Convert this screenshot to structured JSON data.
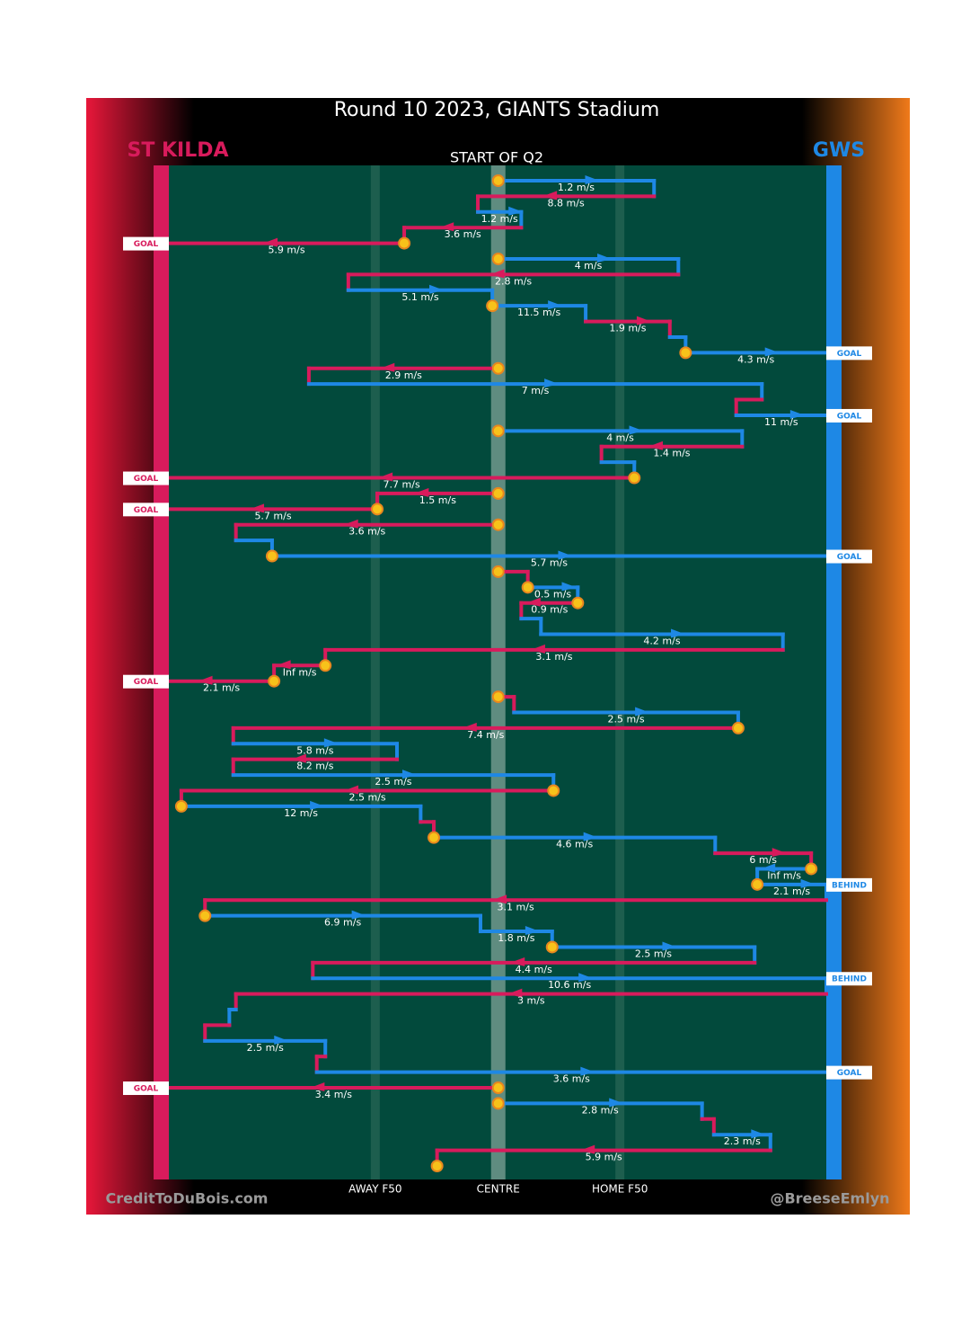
{
  "chart_data": {
    "type": "chain",
    "title": "Round 10 2023, GIANTS Stadium",
    "subtitle": "START OF Q2",
    "credit_left": "CreditToDuBois.com",
    "credit_right": "@BreeseEmlyn",
    "teams": [
      {
        "name": "ST KILDA",
        "color": "#d81b5c"
      },
      {
        "name": "GWS",
        "color": "#1e88e5"
      }
    ],
    "xlim": [
      0,
      100
    ],
    "xticks": [
      {
        "value": 31.4,
        "label": "AWAY F50"
      },
      {
        "value": 50.1,
        "label": "CENTRE"
      },
      {
        "value": 68.6,
        "label": "HOME F50"
      }
    ],
    "segments": [
      {
        "team": "GWS",
        "from": 50.1,
        "to": 73.8,
        "label": "1.2 m/s",
        "marker": true
      },
      {
        "team": "ST KILDA",
        "from": 73.8,
        "to": 47.0,
        "label": "8.8 m/s"
      },
      {
        "team": "GWS",
        "from": 47.0,
        "to": 53.6,
        "label": "1.2 m/s"
      },
      {
        "team": "ST KILDA",
        "from": 53.6,
        "to": 35.8,
        "label": "3.6 m/s"
      },
      {
        "team": "ST KILDA",
        "from": 35.8,
        "to": 0,
        "label": "5.9 m/s",
        "marker": true,
        "outcome": "GOAL"
      },
      {
        "team": "GWS",
        "from": 50.1,
        "to": 77.5,
        "label": "4 m/s",
        "marker": true
      },
      {
        "team": "ST KILDA",
        "from": 77.5,
        "to": 27.3,
        "label": "2.8 m/s"
      },
      {
        "team": "GWS",
        "from": 27.3,
        "to": 49.2,
        "label": "5.1 m/s"
      },
      {
        "team": "GWS",
        "from": 49.2,
        "to": 63.4,
        "label": "11.5 m/s",
        "marker": true
      },
      {
        "team": "ST KILDA",
        "from": 63.4,
        "to": 76.2,
        "label": "1.9 m/s"
      },
      {
        "team": "GWS",
        "from": 76.2,
        "to": 78.6,
        "label": null
      },
      {
        "team": "GWS",
        "from": 78.6,
        "to": 100,
        "label": "4.3 m/s",
        "marker": true,
        "outcome": "GOAL"
      },
      {
        "team": "ST KILDA",
        "from": 50.1,
        "to": 21.3,
        "label": "2.9 m/s",
        "marker": true
      },
      {
        "team": "GWS",
        "from": 21.3,
        "to": 90.2,
        "label": "7 m/s"
      },
      {
        "team": "ST KILDA",
        "from": 90.2,
        "to": 86.3,
        "label": null
      },
      {
        "team": "GWS",
        "from": 86.3,
        "to": 100,
        "label": "11 m/s",
        "outcome": "GOAL"
      },
      {
        "team": "GWS",
        "from": 50.1,
        "to": 87.2,
        "label": "4 m/s",
        "marker": true
      },
      {
        "team": "ST KILDA",
        "from": 87.2,
        "to": 65.8,
        "label": "1.4 m/s"
      },
      {
        "team": "GWS",
        "from": 65.8,
        "to": 70.8,
        "label": null
      },
      {
        "team": "ST KILDA",
        "from": 70.8,
        "to": 0,
        "label": "7.7 m/s",
        "marker": true,
        "outcome": "GOAL"
      },
      {
        "team": "ST KILDA",
        "from": 50.1,
        "to": 31.7,
        "label": "1.5 m/s",
        "marker": true
      },
      {
        "team": "ST KILDA",
        "from": 31.7,
        "to": 0,
        "label": "5.7 m/s",
        "marker": true,
        "outcome": "GOAL"
      },
      {
        "team": "ST KILDA",
        "from": 50.1,
        "to": 10.2,
        "label": "3.6 m/s",
        "marker": true
      },
      {
        "team": "GWS",
        "from": 10.2,
        "to": 15.7,
        "label": null
      },
      {
        "team": "GWS",
        "from": 15.7,
        "to": 100,
        "label": "5.7 m/s",
        "marker": true,
        "outcome": "GOAL"
      },
      {
        "team": "ST KILDA",
        "from": 50.1,
        "to": 54.6,
        "label": null,
        "marker": true
      },
      {
        "team": "GWS",
        "from": 54.6,
        "to": 62.2,
        "label": "0.5 m/s",
        "marker": true
      },
      {
        "team": "ST KILDA",
        "from": 62.2,
        "to": 53.6,
        "label": "0.9 m/s",
        "marker": true
      },
      {
        "team": "GWS",
        "from": 53.6,
        "to": 56.6,
        "label": null
      },
      {
        "team": "GWS",
        "from": 56.6,
        "to": 93.4,
        "label": "4.2 m/s"
      },
      {
        "team": "ST KILDA",
        "from": 93.4,
        "to": 23.8,
        "label": "3.1 m/s"
      },
      {
        "team": "ST KILDA",
        "from": 23.8,
        "to": 16.0,
        "label": "Inf m/s",
        "marker": true
      },
      {
        "team": "ST KILDA",
        "from": 16.0,
        "to": 0,
        "label": "2.1 m/s",
        "marker": true,
        "outcome": "GOAL"
      },
      {
        "team": "ST KILDA",
        "from": 50.1,
        "to": 52.5,
        "label": null,
        "marker": true
      },
      {
        "team": "GWS",
        "from": 52.5,
        "to": 86.6,
        "label": "2.5 m/s"
      },
      {
        "team": "ST KILDA",
        "from": 86.6,
        "to": 9.8,
        "label": "7.4 m/s",
        "marker": true
      },
      {
        "team": "GWS",
        "from": 9.8,
        "to": 34.7,
        "label": "5.8 m/s"
      },
      {
        "team": "ST KILDA",
        "from": 34.7,
        "to": 9.8,
        "label": "8.2 m/s"
      },
      {
        "team": "GWS",
        "from": 9.8,
        "to": 58.5,
        "label": "2.5 m/s"
      },
      {
        "team": "ST KILDA",
        "from": 58.5,
        "to": 1.9,
        "label": "2.5 m/s",
        "marker": true
      },
      {
        "team": "GWS",
        "from": 1.9,
        "to": 38.3,
        "label": "12 m/s",
        "marker": true
      },
      {
        "team": "ST KILDA",
        "from": 38.3,
        "to": 40.3,
        "label": null
      },
      {
        "team": "GWS",
        "from": 40.3,
        "to": 83.1,
        "label": "4.6 m/s",
        "marker": true
      },
      {
        "team": "ST KILDA",
        "from": 83.1,
        "to": 97.7,
        "label": "6 m/s"
      },
      {
        "team": "GWS",
        "from": 97.7,
        "to": 89.5,
        "label": "Inf m/s",
        "marker": true
      },
      {
        "team": "GWS",
        "from": 89.5,
        "to": 100,
        "label": "2.1 m/s",
        "marker": true,
        "outcome": "BEHIND"
      },
      {
        "team": "ST KILDA",
        "from": 100,
        "to": 5.5,
        "label": "3.1 m/s"
      },
      {
        "team": "GWS",
        "from": 5.5,
        "to": 47.4,
        "label": "6.9 m/s",
        "marker": true
      },
      {
        "team": "GWS",
        "from": 47.4,
        "to": 58.3,
        "label": "1.8 m/s"
      },
      {
        "team": "GWS",
        "from": 58.3,
        "to": 89.1,
        "label": "2.5 m/s",
        "marker": true
      },
      {
        "team": "ST KILDA",
        "from": 89.1,
        "to": 21.9,
        "label": "4.4 m/s"
      },
      {
        "team": "GWS",
        "from": 21.9,
        "to": 100,
        "label": "10.6 m/s",
        "outcome": "BEHIND"
      },
      {
        "team": "ST KILDA",
        "from": 100,
        "to": 10.2,
        "label": "3 m/s"
      },
      {
        "team": "GWS",
        "from": 10.2,
        "to": 9.2,
        "label": null
      },
      {
        "team": "ST KILDA",
        "from": 9.2,
        "to": 5.5,
        "label": null
      },
      {
        "team": "GWS",
        "from": 5.5,
        "to": 23.8,
        "label": "2.5 m/s"
      },
      {
        "team": "ST KILDA",
        "from": 23.8,
        "to": 22.5,
        "label": null
      },
      {
        "team": "GWS",
        "from": 22.5,
        "to": 100,
        "label": "3.6 m/s",
        "outcome": "GOAL"
      },
      {
        "team": "ST KILDA",
        "from": 50.1,
        "to": 0,
        "label": "3.4 m/s",
        "marker": true,
        "outcome": "GOAL"
      },
      {
        "team": "GWS",
        "from": 50.1,
        "to": 81.1,
        "label": "2.8 m/s",
        "marker": true
      },
      {
        "team": "ST KILDA",
        "from": 81.1,
        "to": 82.9,
        "label": null
      },
      {
        "team": "GWS",
        "from": 82.9,
        "to": 91.5,
        "label": "2.3 m/s"
      },
      {
        "team": "ST KILDA",
        "from": 91.5,
        "to": 40.8,
        "label": "5.9 m/s"
      },
      {
        "team": "ST KILDA",
        "from": 40.8,
        "to": 40.8,
        "label": null,
        "marker": true
      }
    ]
  }
}
